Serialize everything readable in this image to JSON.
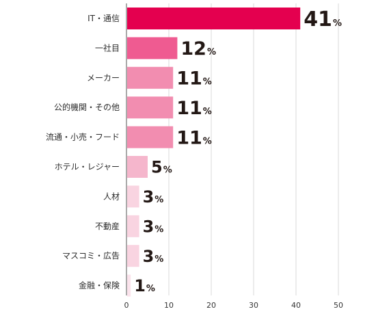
{
  "chart_data": {
    "type": "bar",
    "orientation": "horizontal",
    "title": "",
    "xlabel": "",
    "ylabel": "",
    "unit_suffix": "%",
    "xlim": [
      0,
      50
    ],
    "xticks": [
      0,
      10,
      20,
      30,
      40,
      50
    ],
    "grid": true,
    "legend": "none",
    "categories": [
      "IT・通信",
      "一社目",
      "メーカー",
      "公的機関・その他",
      "流通・小売・フード",
      "ホテル・レジャー",
      "人材",
      "不動産",
      "マスコミ・広告",
      "金融・保険"
    ],
    "values": [
      41,
      12,
      11,
      11,
      11,
      5,
      3,
      3,
      3,
      1
    ],
    "colors": [
      "#e4004f",
      "#ef5b91",
      "#f28db0",
      "#f28db0",
      "#f28db0",
      "#f5b6cc",
      "#f9d4e1",
      "#f9d4e1",
      "#f9d4e1",
      "#fbe3ec"
    ]
  }
}
